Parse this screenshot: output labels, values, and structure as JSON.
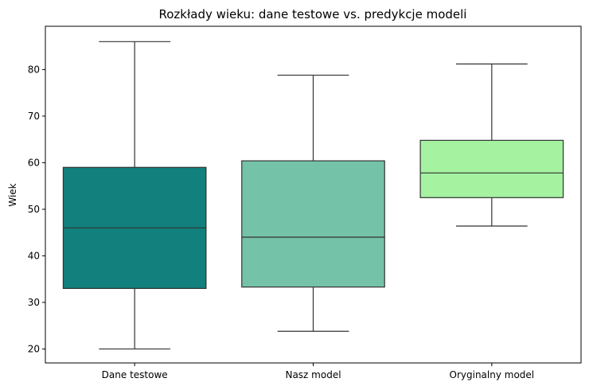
{
  "chart_data": {
    "type": "boxplot",
    "title": "Rozkłady wieku: dane testowe vs. predykcje modeli",
    "xlabel": "",
    "ylabel": "Wiek",
    "ylim": [
      17,
      89.3
    ],
    "yticks": [
      20,
      30,
      40,
      50,
      60,
      70,
      80
    ],
    "grid": false,
    "categories": [
      "Dane testowe",
      "Nasz model",
      "Oryginalny model"
    ],
    "series": [
      {
        "name": "Dane testowe",
        "color": "#12807c",
        "min": 20,
        "q1": 33,
        "median": 46,
        "q3": 59,
        "max": 86
      },
      {
        "name": "Nasz model",
        "color": "#74c2a8",
        "min": 23.8,
        "q1": 33.3,
        "median": 44,
        "q3": 60.4,
        "max": 78.8
      },
      {
        "name": "Oryginalny model",
        "color": "#a5f2a0",
        "min": 46.4,
        "q1": 52.5,
        "median": 57.8,
        "q3": 64.8,
        "max": 81.2
      }
    ]
  }
}
